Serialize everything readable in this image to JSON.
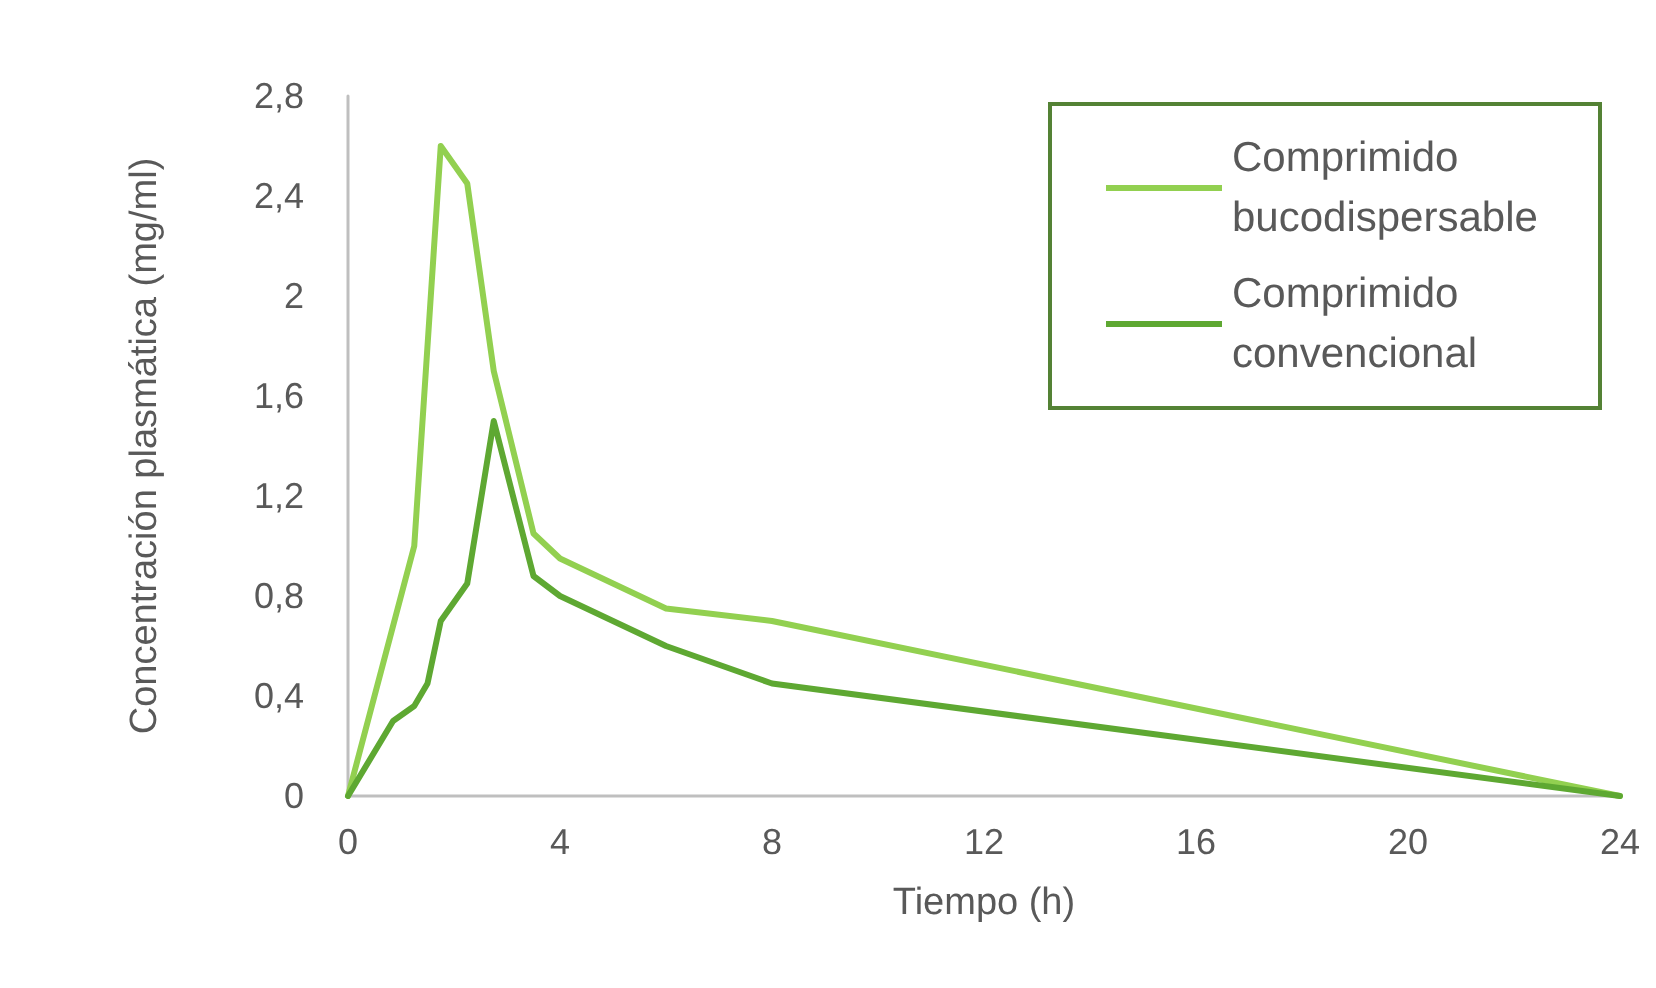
{
  "chart_data": {
    "type": "line",
    "xlabel": "Tiempo (h)",
    "ylabel": "Concentración plasmática (mg/ml)",
    "xlim": [
      0,
      24
    ],
    "xticks": [
      0,
      4,
      8,
      12,
      16,
      20,
      24
    ],
    "ylim": [
      0,
      2.8
    ],
    "yticks": [
      0,
      {
        "value": 0.4,
        "label": "0,4"
      },
      {
        "value": 0.8,
        "label": "0,8"
      },
      {
        "value": 1.2,
        "label": "1,2"
      },
      {
        "value": 1.6,
        "label": "1,6"
      },
      2,
      {
        "value": 2.4,
        "label": "2,4"
      },
      {
        "value": 2.8,
        "label": "2,8"
      }
    ],
    "grid": false,
    "legend": "top right",
    "marker": "none",
    "line_style": "solid",
    "series": [
      {
        "name": "Comprimido bucodispersable",
        "color": "#92d050",
        "x": [
          0,
          1.25,
          1.75,
          2.25,
          2.75,
          3.5,
          4,
          6,
          8,
          24
        ],
        "values": [
          0,
          1.0,
          2.6,
          2.45,
          1.7,
          1.05,
          0.95,
          0.75,
          0.7,
          0
        ]
      },
      {
        "name": "Comprimido convencional",
        "color": "#5ea832",
        "x": [
          0,
          0.85,
          1.25,
          1.5,
          1.75,
          2.25,
          2.75,
          3.5,
          4,
          6,
          8,
          24
        ],
        "values": [
          0,
          0.3,
          0.36,
          0.45,
          0.7,
          0.85,
          1.5,
          0.88,
          0.8,
          0.6,
          0.45,
          0
        ]
      }
    ]
  }
}
